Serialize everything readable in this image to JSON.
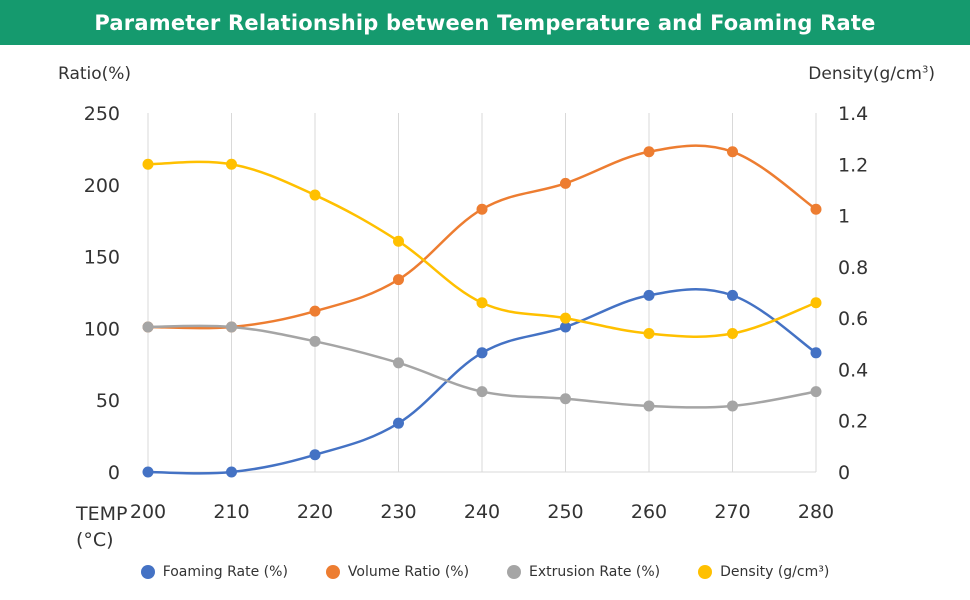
{
  "header": {
    "title": "Parameter Relationship between Temperature and Foaming Rate",
    "background_color": "#159a6e"
  },
  "chart_data": {
    "type": "line",
    "title": "Parameter Relationship between Temperature and Foaming Rate",
    "xlabel_line1": "TEMP",
    "xlabel_line2": "(°C)",
    "ylabel_left": "Ratio(%)",
    "ylabel_right": "Density(g/cm",
    "ylabel_right_sup": "3",
    "ylabel_right_close": ")",
    "x": [
      200,
      210,
      220,
      230,
      240,
      250,
      260,
      270,
      280
    ],
    "x_tick_labels": [
      "200",
      "210",
      "220",
      "230",
      "240",
      "250",
      "260",
      "270",
      "280"
    ],
    "ylim_left": [
      0,
      250
    ],
    "yticks_left": [
      "0",
      "50",
      "100",
      "150",
      "200",
      "250"
    ],
    "ylim_right": [
      0,
      1.4
    ],
    "yticks_right": [
      "0",
      "0.2",
      "0.4",
      "0.6",
      "0.8",
      "1",
      "1.2",
      "1.4"
    ],
    "grid": "vertical",
    "legend_position": "bottom",
    "series": [
      {
        "name": "Foaming Rate (%)",
        "axis": "left",
        "color": "#4472c4",
        "values": [
          0,
          0,
          12,
          34,
          83,
          101,
          123,
          123,
          83
        ]
      },
      {
        "name": "Volume Ratio (%)",
        "axis": "left",
        "color": "#ed7d31",
        "values": [
          101,
          101,
          112,
          134,
          183,
          201,
          223,
          223,
          183
        ]
      },
      {
        "name": "Extrusion Rate (%)",
        "axis": "left",
        "color": "#a5a5a5",
        "values": [
          101,
          101,
          91,
          76,
          56,
          51,
          46,
          46,
          56
        ]
      },
      {
        "name": "Density (g/cm³)",
        "axis": "right",
        "color": "#ffc000",
        "values": [
          1.2,
          1.2,
          1.08,
          0.9,
          0.66,
          0.6,
          0.54,
          0.54,
          0.66
        ]
      }
    ]
  }
}
